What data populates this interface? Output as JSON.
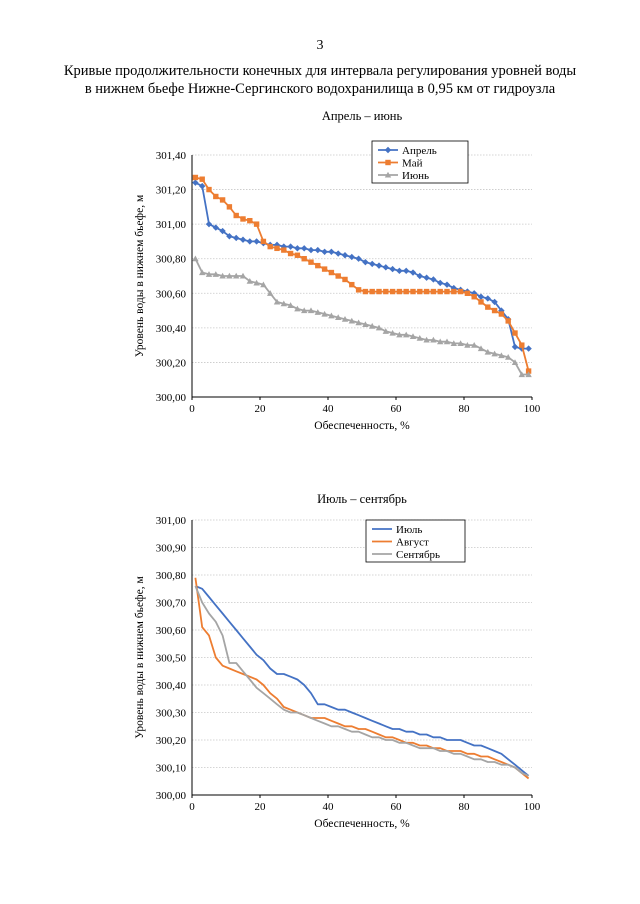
{
  "page": {
    "number": "3",
    "title_line1": "Кривые продолжительности конечных для интервала регулирования уровней воды",
    "title_line2": "в нижнем бьефе Нижне-Сергинского водохранилища в 0,95 км от гидроузла"
  },
  "chart_data": [
    {
      "type": "line",
      "title": "Апрель – июнь",
      "xlabel": "Обеспеченность, %",
      "ylabel": "Уровень воды в нижнем бьефе, м",
      "xlim": [
        0,
        100
      ],
      "ylim": [
        300.0,
        301.4
      ],
      "xticks": [
        0,
        20,
        40,
        60,
        80,
        100
      ],
      "xtick_labels": [
        "0",
        "20",
        "40",
        "60",
        "80",
        "100"
      ],
      "yticks": [
        300.0,
        300.2,
        300.4,
        300.6,
        300.8,
        301.0,
        301.2,
        301.4
      ],
      "ytick_labels": [
        "300,00",
        "300,20",
        "300,40",
        "300,60",
        "300,80",
        "301,00",
        "301,20",
        "301,40"
      ],
      "grid": "horizontal",
      "legend_position": "top-right",
      "series": [
        {
          "name": "Апрель",
          "color": "#4472C4",
          "marker": "diamond",
          "x": [
            1,
            3,
            5,
            7,
            9,
            11,
            13,
            15,
            17,
            19,
            21,
            23,
            25,
            27,
            29,
            31,
            33,
            35,
            37,
            39,
            41,
            43,
            45,
            47,
            49,
            51,
            53,
            55,
            57,
            59,
            61,
            63,
            65,
            67,
            69,
            71,
            73,
            75,
            77,
            79,
            81,
            83,
            85,
            87,
            89,
            91,
            93,
            95,
            97,
            99
          ],
          "y": [
            301.24,
            301.22,
            301.0,
            300.98,
            300.96,
            300.93,
            300.92,
            300.91,
            300.9,
            300.9,
            300.89,
            300.88,
            300.88,
            300.87,
            300.87,
            300.86,
            300.86,
            300.85,
            300.85,
            300.84,
            300.84,
            300.83,
            300.82,
            300.81,
            300.8,
            300.78,
            300.77,
            300.76,
            300.75,
            300.74,
            300.73,
            300.73,
            300.72,
            300.7,
            300.69,
            300.68,
            300.66,
            300.65,
            300.63,
            300.62,
            300.61,
            300.6,
            300.58,
            300.57,
            300.55,
            300.5,
            300.45,
            300.29,
            300.28,
            300.28
          ]
        },
        {
          "name": "Май",
          "color": "#ED7D31",
          "marker": "square",
          "x": [
            1,
            3,
            5,
            7,
            9,
            11,
            13,
            15,
            17,
            19,
            21,
            23,
            25,
            27,
            29,
            31,
            33,
            35,
            37,
            39,
            41,
            43,
            45,
            47,
            49,
            51,
            53,
            55,
            57,
            59,
            61,
            63,
            65,
            67,
            69,
            71,
            73,
            75,
            77,
            79,
            81,
            83,
            85,
            87,
            89,
            91,
            93,
            95,
            97,
            99
          ],
          "y": [
            301.27,
            301.26,
            301.2,
            301.16,
            301.14,
            301.1,
            301.05,
            301.03,
            301.02,
            301.0,
            300.9,
            300.87,
            300.86,
            300.85,
            300.83,
            300.82,
            300.8,
            300.78,
            300.76,
            300.74,
            300.72,
            300.7,
            300.68,
            300.65,
            300.62,
            300.61,
            300.61,
            300.61,
            300.61,
            300.61,
            300.61,
            300.61,
            300.61,
            300.61,
            300.61,
            300.61,
            300.61,
            300.61,
            300.61,
            300.61,
            300.6,
            300.58,
            300.55,
            300.52,
            300.5,
            300.48,
            300.44,
            300.37,
            300.3,
            300.15
          ]
        },
        {
          "name": "Июнь",
          "color": "#A5A5A5",
          "marker": "triangle",
          "x": [
            1,
            3,
            5,
            7,
            9,
            11,
            13,
            15,
            17,
            19,
            21,
            23,
            25,
            27,
            29,
            31,
            33,
            35,
            37,
            39,
            41,
            43,
            45,
            47,
            49,
            51,
            53,
            55,
            57,
            59,
            61,
            63,
            65,
            67,
            69,
            71,
            73,
            75,
            77,
            79,
            81,
            83,
            85,
            87,
            89,
            91,
            93,
            95,
            97,
            99
          ],
          "y": [
            300.8,
            300.72,
            300.71,
            300.71,
            300.7,
            300.7,
            300.7,
            300.7,
            300.67,
            300.66,
            300.65,
            300.6,
            300.55,
            300.54,
            300.53,
            300.51,
            300.5,
            300.5,
            300.49,
            300.48,
            300.47,
            300.46,
            300.45,
            300.44,
            300.43,
            300.42,
            300.41,
            300.4,
            300.38,
            300.37,
            300.36,
            300.36,
            300.35,
            300.34,
            300.33,
            300.33,
            300.32,
            300.32,
            300.31,
            300.31,
            300.3,
            300.3,
            300.28,
            300.26,
            300.25,
            300.24,
            300.23,
            300.2,
            300.13,
            300.13
          ]
        }
      ]
    },
    {
      "type": "line",
      "title": "Июль – сентябрь",
      "xlabel": "Обеспеченность, %",
      "ylabel": "Уровень воды в нижнем бьефе, м",
      "xlim": [
        0,
        100
      ],
      "ylim": [
        300.0,
        301.0
      ],
      "xticks": [
        0,
        20,
        40,
        60,
        80,
        100
      ],
      "xtick_labels": [
        "0",
        "20",
        "40",
        "60",
        "80",
        "100"
      ],
      "yticks": [
        300.0,
        300.1,
        300.2,
        300.3,
        300.4,
        300.5,
        300.6,
        300.7,
        300.8,
        300.9,
        301.0
      ],
      "ytick_labels": [
        "300,00",
        "300,10",
        "300,20",
        "300,30",
        "300,40",
        "300,50",
        "300,60",
        "300,70",
        "300,80",
        "300,90",
        "301,00"
      ],
      "grid": "horizontal",
      "legend_position": "top-right",
      "series": [
        {
          "name": "Июль",
          "color": "#4472C4",
          "marker": "none",
          "x": [
            1,
            3,
            5,
            7,
            9,
            11,
            13,
            15,
            17,
            19,
            21,
            23,
            25,
            27,
            29,
            31,
            33,
            35,
            37,
            39,
            41,
            43,
            45,
            47,
            49,
            51,
            53,
            55,
            57,
            59,
            61,
            63,
            65,
            67,
            69,
            71,
            73,
            75,
            77,
            79,
            81,
            83,
            85,
            87,
            89,
            91,
            93,
            95,
            97,
            99
          ],
          "y": [
            300.76,
            300.75,
            300.72,
            300.69,
            300.66,
            300.63,
            300.6,
            300.57,
            300.54,
            300.51,
            300.49,
            300.46,
            300.44,
            300.44,
            300.43,
            300.42,
            300.4,
            300.37,
            300.33,
            300.33,
            300.32,
            300.31,
            300.31,
            300.3,
            300.29,
            300.28,
            300.27,
            300.26,
            300.25,
            300.24,
            300.24,
            300.23,
            300.23,
            300.22,
            300.22,
            300.21,
            300.21,
            300.2,
            300.2,
            300.2,
            300.19,
            300.18,
            300.18,
            300.17,
            300.16,
            300.15,
            300.13,
            300.11,
            300.09,
            300.07
          ]
        },
        {
          "name": "Август",
          "color": "#ED7D31",
          "marker": "none",
          "x": [
            1,
            3,
            5,
            7,
            9,
            11,
            13,
            15,
            17,
            19,
            21,
            23,
            25,
            27,
            29,
            31,
            33,
            35,
            37,
            39,
            41,
            43,
            45,
            47,
            49,
            51,
            53,
            55,
            57,
            59,
            61,
            63,
            65,
            67,
            69,
            71,
            73,
            75,
            77,
            79,
            81,
            83,
            85,
            87,
            89,
            91,
            93,
            95,
            97,
            99
          ],
          "y": [
            300.79,
            300.61,
            300.58,
            300.5,
            300.47,
            300.46,
            300.45,
            300.44,
            300.43,
            300.42,
            300.4,
            300.37,
            300.35,
            300.32,
            300.31,
            300.3,
            300.29,
            300.28,
            300.28,
            300.28,
            300.27,
            300.26,
            300.25,
            300.25,
            300.24,
            300.24,
            300.23,
            300.22,
            300.21,
            300.21,
            300.2,
            300.19,
            300.19,
            300.18,
            300.18,
            300.17,
            300.17,
            300.16,
            300.16,
            300.16,
            300.15,
            300.15,
            300.14,
            300.14,
            300.13,
            300.12,
            300.11,
            300.1,
            300.08,
            300.06
          ]
        },
        {
          "name": "Сентябрь",
          "color": "#A5A5A5",
          "marker": "none",
          "x": [
            1,
            3,
            5,
            7,
            9,
            11,
            13,
            15,
            17,
            19,
            21,
            23,
            25,
            27,
            29,
            31,
            33,
            35,
            37,
            39,
            41,
            43,
            45,
            47,
            49,
            51,
            53,
            55,
            57,
            59,
            61,
            63,
            65,
            67,
            69,
            71,
            73,
            75,
            77,
            79,
            81,
            83,
            85,
            87,
            89,
            91,
            93,
            95,
            97,
            99
          ],
          "y": [
            300.76,
            300.7,
            300.66,
            300.63,
            300.58,
            300.48,
            300.48,
            300.45,
            300.42,
            300.39,
            300.37,
            300.35,
            300.33,
            300.31,
            300.3,
            300.3,
            300.29,
            300.28,
            300.27,
            300.26,
            300.25,
            300.25,
            300.24,
            300.23,
            300.23,
            300.22,
            300.21,
            300.21,
            300.2,
            300.2,
            300.19,
            300.19,
            300.18,
            300.17,
            300.17,
            300.17,
            300.16,
            300.16,
            300.15,
            300.15,
            300.14,
            300.13,
            300.13,
            300.12,
            300.12,
            300.11,
            300.11,
            300.1,
            300.08,
            300.07
          ]
        }
      ]
    }
  ]
}
